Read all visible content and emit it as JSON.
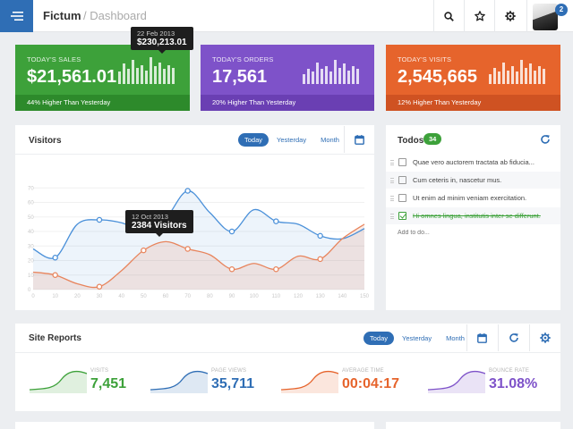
{
  "header": {
    "brand": "Fictum",
    "crumb": "/ Dashboard",
    "notifications_count": "2",
    "icons": [
      "menu-icon",
      "search-icon",
      "star-icon",
      "gear-icon"
    ]
  },
  "stats": [
    {
      "label": "TODAY'S SALES",
      "value": "$21,561.01",
      "footer": "44% Higher Than Yesterday",
      "color": "#3da13a",
      "bars": [
        0.45,
        0.75,
        0.55,
        0.9,
        0.6,
        0.7,
        0.5,
        1.0,
        0.65,
        0.8,
        0.55,
        0.7,
        0.6
      ]
    },
    {
      "label": "TODAY'S ORDERS",
      "value": "17,561",
      "footer": "20% Higher Than Yesterday",
      "color": "#7e52c9",
      "bars": [
        0.35,
        0.55,
        0.45,
        0.8,
        0.55,
        0.65,
        0.45,
        0.9,
        0.6,
        0.75,
        0.5,
        0.65,
        0.55
      ]
    },
    {
      "label": "TODAY'S VISITS",
      "value": "2,545,665",
      "footer": "12% Higher Than Yesterday",
      "color": "#e6642c",
      "bars": [
        0.35,
        0.6,
        0.45,
        0.8,
        0.5,
        0.65,
        0.45,
        0.9,
        0.6,
        0.75,
        0.5,
        0.65,
        0.55
      ]
    }
  ],
  "sales_tooltip": {
    "date": "22 Feb 2013",
    "value": "$230,213.01"
  },
  "visitors": {
    "title": "Visitors",
    "tabs": [
      "Today",
      "Yesterday",
      "Month"
    ],
    "active_tab": "Today",
    "tooltip": {
      "date": "12 Oct 2013",
      "value": "2384 Visitors"
    }
  },
  "chart_data": {
    "type": "area",
    "x": [
      0,
      10,
      20,
      30,
      40,
      50,
      60,
      70,
      80,
      90,
      100,
      110,
      120,
      130,
      140,
      150
    ],
    "ylim": [
      0,
      80
    ],
    "y_ticks": [
      0,
      10,
      20,
      30,
      40,
      50,
      60,
      70
    ],
    "x_ticks": [
      0,
      10,
      20,
      30,
      40,
      50,
      60,
      70,
      80,
      90,
      100,
      110,
      120,
      130,
      140,
      150
    ],
    "grid": true,
    "series": [
      {
        "color": "#4a90d9",
        "values": [
          28,
          22,
          45,
          48,
          46,
          41,
          49,
          68,
          53,
          40,
          55,
          47,
          45,
          37,
          35,
          42
        ]
      },
      {
        "color": "#e8845c",
        "values": [
          12,
          10,
          4,
          2,
          13,
          27,
          33,
          28,
          24,
          14,
          18,
          14,
          23,
          21,
          35,
          45
        ]
      }
    ]
  },
  "todos": {
    "title": "Todos",
    "count": "34",
    "items": [
      {
        "text": "Quae vero auctorem tractata ab fiducia...",
        "done": false
      },
      {
        "text": "Cum ceteris in, nascetur mus.",
        "done": false
      },
      {
        "text": "Ut enim ad minim veniam exercitation.",
        "done": false
      },
      {
        "text": "Hi omnes lingua, institutis inter se differunt.",
        "done": true
      }
    ],
    "add_placeholder": "Add to do..."
  },
  "site_reports": {
    "title": "Site Reports",
    "tabs": [
      "Today",
      "Yesterday",
      "Month"
    ],
    "active_tab": "Today",
    "items": [
      {
        "label": "VISITS",
        "value": "7,451",
        "color": "#3da13a"
      },
      {
        "label": "PAGE VIEWS",
        "value": "35,711",
        "color": "#2f6eb5"
      },
      {
        "label": "AVERAGE TIME",
        "value": "00:04:17",
        "color": "#e6642c"
      },
      {
        "label": "BOUNCE RATE",
        "value": "31.08%",
        "color": "#7e52c9"
      }
    ]
  }
}
